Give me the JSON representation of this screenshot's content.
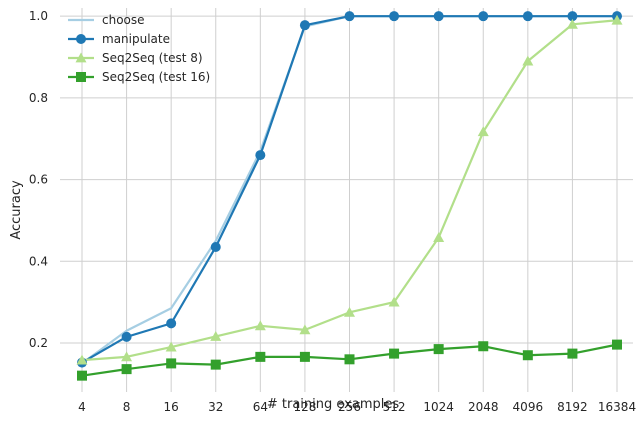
{
  "chart_data": {
    "type": "line",
    "xlabel": "# training examples",
    "ylabel": "Accuracy",
    "x": [
      "4",
      "8",
      "16",
      "32",
      "64",
      "128",
      "256",
      "512",
      "1024",
      "2048",
      "4096",
      "8192",
      "16384"
    ],
    "ylim": [
      0.08,
      1.02
    ],
    "yticks": [
      "0.2",
      "0.4",
      "0.6",
      "0.8",
      "1.0"
    ],
    "ytick_values": [
      0.2,
      0.4,
      0.6,
      0.8,
      1.0
    ],
    "grid": true,
    "legend_position": "top-left",
    "series": [
      {
        "name": "choose",
        "color": "#a6cee3",
        "marker": "none",
        "values": [
          0.15,
          0.23,
          0.285,
          0.45,
          0.67,
          0.975,
          1.0,
          1.0,
          1.0,
          1.0,
          1.0,
          1.0,
          1.0
        ]
      },
      {
        "name": "manipulate",
        "color": "#1f78b4",
        "marker": "circle",
        "values": [
          0.152,
          0.215,
          0.248,
          0.435,
          0.66,
          0.978,
          1.0,
          1.0,
          1.0,
          1.0,
          1.0,
          1.0,
          1.0
        ]
      },
      {
        "name": "Seq2Seq (test 8)",
        "color": "#b2df8a",
        "marker": "triangle",
        "values": [
          0.158,
          0.166,
          0.19,
          0.216,
          0.242,
          0.232,
          0.275,
          0.3,
          0.458,
          0.717,
          0.89,
          0.98,
          0.99
        ]
      },
      {
        "name": "Seq2Seq (test 16)",
        "color": "#33a02c",
        "marker": "square",
        "values": [
          0.12,
          0.136,
          0.15,
          0.147,
          0.166,
          0.166,
          0.16,
          0.174,
          0.185,
          0.192,
          0.17,
          0.174,
          0.196
        ]
      }
    ]
  }
}
